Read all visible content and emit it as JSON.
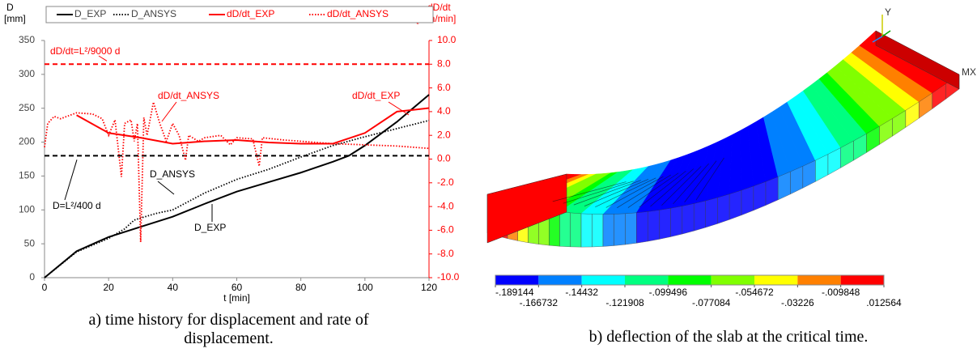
{
  "chart_data": [
    {
      "type": "line",
      "y_label": [
        "D",
        "[mm]"
      ],
      "y2_label": [
        "dD/dt",
        "[mm/min]"
      ],
      "x_label": "t [min]",
      "caption": "a) time history for displacement and rate of displacement.",
      "xlim": [
        0,
        120
      ],
      "xticks": [
        0,
        20,
        40,
        60,
        80,
        100,
        120
      ],
      "ylim": [
        0,
        350
      ],
      "yticks": [
        0,
        50,
        100,
        150,
        200,
        250,
        300,
        350
      ],
      "y2lim": [
        -10,
        10
      ],
      "y2ticks": [
        {
          "value": -10,
          "label": "-10.0"
        },
        {
          "value": -8,
          "label": "-8.0"
        },
        {
          "value": -6,
          "label": "-6.0"
        },
        {
          "value": -4,
          "label": "-4.0"
        },
        {
          "value": -2,
          "label": "-2.0"
        },
        {
          "value": 0,
          "label": "0.0"
        },
        {
          "value": 2,
          "label": "2.0"
        },
        {
          "value": 4,
          "label": "4.0"
        },
        {
          "value": 6,
          "label": "6.0"
        },
        {
          "value": 8,
          "label": "8.0"
        },
        {
          "value": 10,
          "label": "10.0"
        }
      ],
      "grid": false,
      "legend": "top",
      "series": [
        {
          "name": "D_EXP",
          "color": "#000000",
          "style": "solid",
          "x": [
            0,
            10,
            20,
            30,
            40,
            50,
            60,
            70,
            80,
            90,
            95,
            100,
            110,
            120
          ],
          "values": [
            0,
            39,
            60,
            75,
            90,
            109,
            127,
            141,
            155,
            171,
            180,
            195,
            230,
            270
          ]
        },
        {
          "name": "D_ANSYS",
          "color": "#000000",
          "style": "dotted",
          "x": [
            0,
            10,
            20,
            25,
            28,
            30,
            35,
            40,
            50,
            60,
            70,
            80,
            90,
            100,
            110,
            120
          ],
          "values": [
            0,
            38,
            58,
            72,
            85,
            88,
            95,
            100,
            125,
            145,
            160,
            178,
            195,
            208,
            220,
            232
          ]
        },
        {
          "name": "dD/dt_EXP",
          "color": "#ff0000",
          "style": "solid",
          "axis": "y2",
          "x": [
            10,
            20,
            30,
            40,
            50,
            60,
            70,
            80,
            90,
            100,
            110,
            120
          ],
          "values": [
            3.7,
            2.2,
            1.8,
            1.3,
            1.5,
            1.6,
            1.4,
            1.3,
            1.3,
            2.2,
            4.0,
            4.3
          ]
        },
        {
          "name": "dD/dt_ANSYS",
          "color": "#ff0000",
          "style": "dotted",
          "axis": "y2",
          "x": [
            0,
            1,
            3,
            5,
            10,
            15,
            18,
            20,
            22,
            24,
            25,
            27,
            28,
            29,
            30,
            31,
            32,
            34,
            36,
            38,
            40,
            42,
            44,
            45,
            48,
            50,
            55,
            58,
            60,
            65,
            67,
            68,
            75,
            80,
            90,
            100,
            110,
            120
          ],
          "values": [
            1.0,
            3.0,
            3.6,
            3.4,
            3.9,
            3.8,
            3.4,
            2.0,
            3.3,
            -1.5,
            3.0,
            3.3,
            1.5,
            3.0,
            -7.0,
            3.5,
            2.0,
            4.8,
            3.0,
            1.5,
            3.0,
            2.0,
            -0.1,
            2.0,
            1.5,
            1.8,
            2.0,
            1.2,
            1.8,
            1.7,
            -0.6,
            1.8,
            1.6,
            1.5,
            1.3,
            1.2,
            1.1,
            0.9
          ]
        }
      ],
      "reference_lines": [
        {
          "value": 8,
          "axis": "y2",
          "label": "dD/dt=L²/9000 d",
          "color": "#ff0000"
        },
        {
          "value": 180,
          "axis": "y",
          "label": "D=L²/400 d",
          "color": "#000000"
        }
      ],
      "annotations": [
        {
          "text": "dD/dt_ANSYS",
          "color": "#ff0000"
        },
        {
          "text": "dD/dt_EXP",
          "color": "#ff0000"
        },
        {
          "text": "D_ANSYS",
          "color": "#000000"
        },
        {
          "text": "D_EXP",
          "color": "#000000"
        }
      ]
    },
    {
      "type": "colorbar",
      "caption": "b) deflection of the slab at the critical time.",
      "xlim": [
        -0.189144,
        0.012564
      ],
      "xticks": [
        {
          "value": -0.189144,
          "label": "-.189144"
        },
        {
          "value": -0.166732,
          "label": "-.166732"
        },
        {
          "value": -0.14432,
          "label": "-.14432"
        },
        {
          "value": -0.121908,
          "label": "-.121908"
        },
        {
          "value": -0.099496,
          "label": "-.099496"
        },
        {
          "value": -0.077084,
          "label": "-.077084"
        },
        {
          "value": -0.054672,
          "label": "-.054672"
        },
        {
          "value": -0.03226,
          "label": "-.03226"
        },
        {
          "value": -0.009848,
          "label": "-.009848"
        },
        {
          "value": 0.012564,
          "label": ".012564"
        }
      ],
      "colors": [
        "#0000ff",
        "#0080ff",
        "#00ffff",
        "#00ff80",
        "#00ff00",
        "#80ff00",
        "#ffff00",
        "#ff8000",
        "#ff0000"
      ],
      "annotations": [
        {
          "text": "Y"
        },
        {
          "text": "MX"
        }
      ]
    }
  ]
}
